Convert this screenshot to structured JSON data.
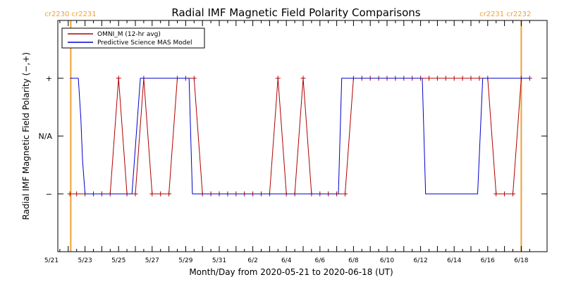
{
  "chart_data": {
    "type": "line",
    "title": "Radial IMF Magnetic Field Polarity Comparisons",
    "xlabel": "Month/Day from 2020-05-21 to 2020-06-18 (UT)",
    "ylabel": "Radial IMF Magnetic Field Polarity (−,+)",
    "x_unit": "days from 2020-05-21 00:00 UT",
    "xlim": [
      0,
      28.5
    ],
    "ylim": [
      -2,
      2
    ],
    "x_ticks": [
      {
        "x": 0,
        "label": "5/21"
      },
      {
        "x": 2,
        "label": "5/23"
      },
      {
        "x": 4,
        "label": "5/25"
      },
      {
        "x": 6,
        "label": "5/27"
      },
      {
        "x": 8,
        "label": "5/29"
      },
      {
        "x": 10,
        "label": "5/31"
      },
      {
        "x": 12,
        "label": "6/2"
      },
      {
        "x": 14,
        "label": "6/4"
      },
      {
        "x": 16,
        "label": "6/6"
      },
      {
        "x": 18,
        "label": "6/8"
      },
      {
        "x": 20,
        "label": "6/10"
      },
      {
        "x": 22,
        "label": "6/12"
      },
      {
        "x": 24,
        "label": "6/14"
      },
      {
        "x": 26,
        "label": "6/16"
      },
      {
        "x": 28,
        "label": "6/18"
      }
    ],
    "y_ticks": [
      {
        "y": 1,
        "label": "+"
      },
      {
        "y": 0,
        "label": "N/A"
      },
      {
        "y": -1,
        "label": "−"
      }
    ],
    "carrington_markers": [
      {
        "x": 1.15,
        "label": "cr2230 cr2231",
        "color": "#f0a030",
        "label_side": "left"
      },
      {
        "x": 28.0,
        "label": "cr2231 cr2232",
        "color": "#f0a030",
        "label_side": "right"
      }
    ],
    "legend": "top-left",
    "series": [
      {
        "name": "OMNI_M (12-hr avg)",
        "color": "#b00000",
        "marker": "plus",
        "points": [
          [
            1.1,
            -1
          ],
          [
            1.5,
            -1
          ],
          [
            2.0,
            -1
          ],
          [
            2.5,
            -1
          ],
          [
            3.0,
            -1
          ],
          [
            3.5,
            -1
          ],
          [
            4.0,
            1
          ],
          [
            4.5,
            -1
          ],
          [
            5.0,
            -1
          ],
          [
            5.5,
            1
          ],
          [
            6.0,
            -1
          ],
          [
            6.5,
            -1
          ],
          [
            7.0,
            -1
          ],
          [
            7.5,
            1
          ],
          [
            8.0,
            1
          ],
          [
            8.5,
            1
          ],
          [
            9.0,
            -1
          ],
          [
            9.5,
            -1
          ],
          [
            10.0,
            -1
          ],
          [
            10.5,
            -1
          ],
          [
            11.0,
            -1
          ],
          [
            11.5,
            -1
          ],
          [
            12.0,
            -1
          ],
          [
            12.5,
            -1
          ],
          [
            13.0,
            -1
          ],
          [
            13.5,
            1
          ],
          [
            14.0,
            -1
          ],
          [
            14.5,
            -1
          ],
          [
            15.0,
            1
          ],
          [
            15.5,
            -1
          ],
          [
            16.0,
            -1
          ],
          [
            16.5,
            -1
          ],
          [
            17.0,
            -1
          ],
          [
            17.5,
            -1
          ],
          [
            18.0,
            1
          ],
          [
            18.5,
            1
          ],
          [
            19.0,
            1
          ],
          [
            19.5,
            1
          ],
          [
            20.0,
            1
          ],
          [
            20.5,
            1
          ],
          [
            21.0,
            1
          ],
          [
            21.5,
            1
          ],
          [
            22.0,
            1
          ],
          [
            22.5,
            1
          ],
          [
            23.0,
            1
          ],
          [
            23.5,
            1
          ],
          [
            24.0,
            1
          ],
          [
            24.5,
            1
          ],
          [
            25.0,
            1
          ],
          [
            25.5,
            1
          ],
          [
            26.0,
            1
          ],
          [
            26.5,
            -1
          ],
          [
            27.0,
            -1
          ],
          [
            27.5,
            -1
          ],
          [
            28.0,
            1
          ],
          [
            28.5,
            1
          ]
        ]
      },
      {
        "name": "Predictive Science MAS Model",
        "color": "#0000cc",
        "marker": "none",
        "points": [
          [
            1.1,
            1
          ],
          [
            1.6,
            1
          ],
          [
            1.75,
            0.3
          ],
          [
            1.85,
            -0.4
          ],
          [
            2.0,
            -1
          ],
          [
            4.8,
            -1
          ],
          [
            5.3,
            1
          ],
          [
            8.2,
            1
          ],
          [
            8.4,
            -1
          ],
          [
            17.1,
            -1
          ],
          [
            17.3,
            1
          ],
          [
            22.1,
            1
          ],
          [
            22.3,
            -1
          ],
          [
            25.4,
            -1
          ],
          [
            25.7,
            1
          ],
          [
            28.5,
            1
          ]
        ]
      }
    ]
  }
}
